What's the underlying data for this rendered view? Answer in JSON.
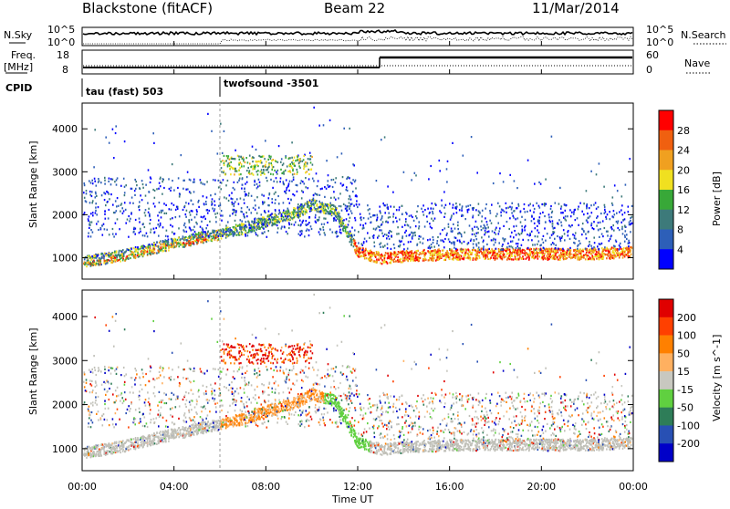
{
  "header": {
    "station": "Blackstone (fitACF)",
    "beam": "Beam 22",
    "date": "11/Mar/2014"
  },
  "top_panels": {
    "nsky_label": "N.Sky",
    "nsearch_label": "N.Search",
    "nsky_ticks": [
      "10^5",
      "10^0"
    ],
    "nsearch_ticks": [
      "10^5",
      "10^0"
    ],
    "freq_label_line1": "Freq.",
    "freq_label_line2": "[MHz]",
    "freq_ticks": [
      "18",
      "8"
    ],
    "nave_label": "Nave",
    "nave_ticks": [
      "60",
      "0"
    ],
    "cpid_label": "CPID",
    "cpid_segments": [
      "tau (fast) 503",
      "twofsound -3501"
    ]
  },
  "colors": {
    "power": [
      "#0000ff",
      "#2d5fb8",
      "#3d7a7a",
      "#38a838",
      "#f0e020",
      "#f0a020",
      "#f06010",
      "#ff0000"
    ],
    "velocity": [
      "#0000c8",
      "#2850b4",
      "#2e7d58",
      "#60d040",
      "#c8c8c0",
      "#ffb060",
      "#ff8000",
      "#ff4000",
      "#e00000"
    ],
    "ground_scatter": "#c0c0b8"
  },
  "chart_data": [
    {
      "type": "heatmap",
      "panel": "power",
      "ylabel": "Slant Range [km]",
      "xlabel": "Time UT",
      "x_ticks": [
        "00:00",
        "04:00",
        "08:00",
        "12:00",
        "16:00",
        "20:00",
        "00:00"
      ],
      "xlim_hours": [
        0,
        24
      ],
      "ylim_km": [
        500,
        4600
      ],
      "y_ticks": [
        1000,
        2000,
        3000,
        4000
      ],
      "colorbar_label": "Power [dB]",
      "colorbar_ticks": [
        28,
        24,
        20,
        16,
        12,
        8,
        4
      ],
      "colorbar_range": [
        0,
        32
      ],
      "cpid_change_hour": 6.0,
      "main_band": {
        "hours": [
          0,
          1,
          2,
          3,
          4,
          5,
          6,
          7,
          8,
          9,
          10,
          11,
          12,
          13,
          14,
          16,
          18,
          20,
          22,
          24
        ],
        "range_km": [
          880,
          950,
          1050,
          1180,
          1300,
          1420,
          1520,
          1650,
          1820,
          1950,
          2200,
          2050,
          1100,
          950,
          1000,
          1050,
          1050,
          1050,
          1050,
          1100
        ]
      }
    },
    {
      "type": "heatmap",
      "panel": "velocity",
      "ylabel": "Slant Range [km]",
      "xlabel": "Time UT",
      "x_ticks": [
        "00:00",
        "04:00",
        "08:00",
        "12:00",
        "16:00",
        "20:00",
        "00:00"
      ],
      "xlim_hours": [
        0,
        24
      ],
      "ylim_km": [
        500,
        4600
      ],
      "y_ticks": [
        1000,
        2000,
        3000,
        4000
      ],
      "colorbar_label": "Velocity [m s^-1]",
      "colorbar_ticks": [
        "200",
        "100",
        "50",
        "15",
        "-15",
        "-50",
        "-100",
        "-200"
      ],
      "colorbar_range": [
        -250,
        250
      ]
    }
  ]
}
